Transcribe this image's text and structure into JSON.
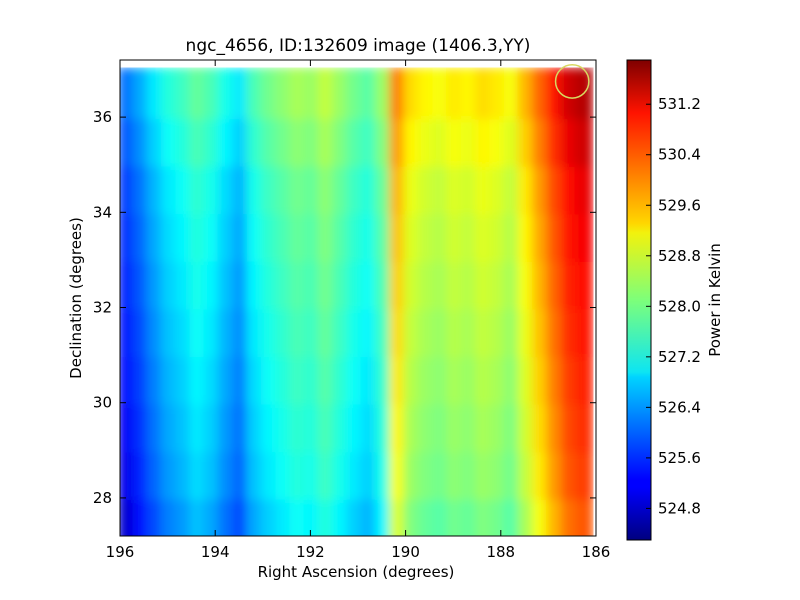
{
  "chart_data": {
    "type": "heatmap",
    "title": "ngc_4656, ID:132609 image (1406.3,YY)",
    "xlabel": "Right Ascension (degrees)",
    "ylabel": "Declination (degrees)",
    "colorbar_label": "Power in Kelvin",
    "xlim": [
      196,
      186
    ],
    "ylim": [
      27.2,
      37.2
    ],
    "x_ticks": [
      196,
      194,
      192,
      190,
      188,
      186
    ],
    "x_tick_labels": [
      "196",
      "194",
      "192",
      "190",
      "188",
      "186"
    ],
    "y_ticks": [
      28,
      30,
      32,
      34,
      36
    ],
    "y_tick_labels": [
      "28",
      "30",
      "32",
      "34",
      "36"
    ],
    "colorbar_range": [
      524.3,
      531.9
    ],
    "colorbar_ticks": [
      524.8,
      525.6,
      526.4,
      527.2,
      528.0,
      528.8,
      529.6,
      530.4,
      531.2
    ],
    "colorbar_tick_labels": [
      "524.8",
      "525.6",
      "526.4",
      "527.2",
      "528.0",
      "528.8",
      "529.6",
      "530.4",
      "531.2"
    ],
    "colormap": "jet",
    "marker": {
      "ra": 186.5,
      "dec": 36.75,
      "radius_deg": 0.35,
      "color": "#d8d860"
    },
    "ra_columns": [
      195.85,
      195.55,
      195.25,
      194.95,
      194.65,
      194.35,
      194.05,
      193.75,
      193.45,
      193.15,
      192.85,
      192.55,
      192.25,
      191.95,
      191.65,
      191.35,
      191.05,
      190.75,
      190.45,
      190.15,
      189.85,
      189.55,
      189.25,
      188.95,
      188.65,
      188.35,
      188.05,
      187.75,
      187.45,
      187.15,
      186.85,
      186.55,
      186.25
    ],
    "column_mean_power": [
      525.4,
      525.8,
      526.3,
      526.7,
      526.9,
      527.2,
      527.0,
      526.6,
      526.3,
      527.0,
      527.3,
      527.5,
      527.7,
      527.6,
      527.9,
      527.6,
      527.3,
      527.1,
      527.6,
      529.3,
      528.6,
      528.4,
      528.3,
      528.5,
      528.4,
      528.6,
      528.5,
      528.3,
      528.9,
      529.5,
      530.1,
      530.6,
      530.8
    ],
    "dec_rows": [
      27.5,
      28.5,
      29.5,
      30.5,
      31.5,
      32.5,
      33.5,
      34.5,
      35.5,
      36.5
    ],
    "row_offset_power": [
      -0.5,
      -0.3,
      -0.2,
      -0.1,
      0.0,
      0.1,
      0.2,
      0.3,
      0.5,
      0.7
    ]
  }
}
